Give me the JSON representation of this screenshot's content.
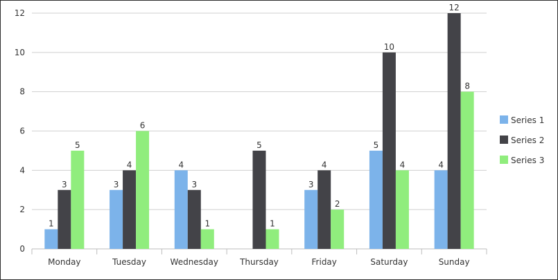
{
  "chart_data": {
    "type": "bar",
    "categories": [
      "Monday",
      "Tuesday",
      "Wednesday",
      "Thursday",
      "Friday",
      "Saturday",
      "Sunday"
    ],
    "series": [
      {
        "name": "Series 1",
        "color": "#7cb3ea",
        "values": [
          1,
          3,
          4,
          null,
          3,
          5,
          4
        ]
      },
      {
        "name": "Series 2",
        "color": "#434348",
        "values": [
          3,
          4,
          3,
          5,
          4,
          10,
          12
        ]
      },
      {
        "name": "Series 3",
        "color": "#90ed7d",
        "values": [
          5,
          6,
          1,
          1,
          2,
          4,
          8
        ]
      }
    ],
    "ylim": [
      0,
      12
    ],
    "yticks": [
      0,
      2,
      4,
      6,
      8,
      10,
      12
    ],
    "grid": true,
    "legend": "right",
    "data_labels": true
  }
}
